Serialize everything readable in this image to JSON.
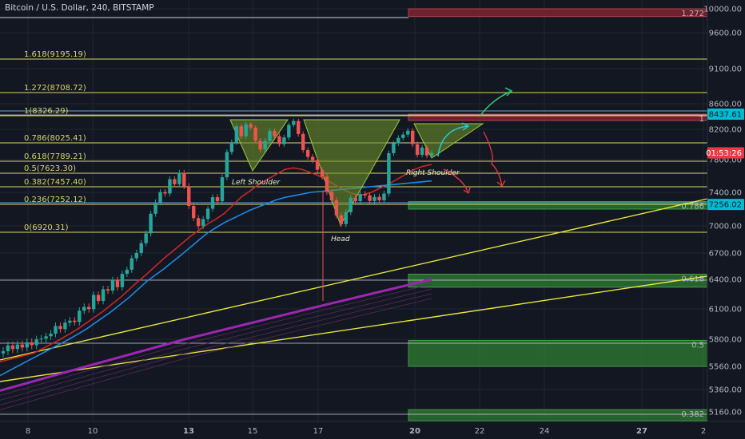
{
  "header": {
    "title": "Bitcoin / U.S. Dollar, 240, BITSTAMP"
  },
  "colors": {
    "background": "#131722",
    "grid": "#1f2430",
    "fib_line": "#d9d56a",
    "fib_text": "#d9d56a",
    "bull": "#26a69a",
    "bear": "#ef5350",
    "ma_red": "#c62828",
    "ma_blue": "#1e88e5",
    "ma_purple": "#9c27b0",
    "zone_green": "#2e7d32",
    "zone_red": "#8e2430",
    "pattern_fill": "#6b8f2a",
    "price_tag_cyan": "#00bcd4",
    "price_tag_red": "#f23645"
  },
  "chart_data": {
    "type": "candlestick",
    "y_axis": {
      "ticks": [
        10000,
        9600,
        9100,
        8600,
        8200,
        7800,
        7400,
        7000,
        6700,
        6400,
        6100,
        5800,
        5560,
        5360,
        5160
      ],
      "labels": [
        "10000.00",
        "9600.00",
        "9100.00",
        "8600.00",
        "8200.00",
        "7800.00",
        "7400.00",
        "7000.00",
        "6700.00",
        "6400.00",
        "6100.00",
        "5800.00",
        "5560.00",
        "5360.00",
        "5160.00"
      ]
    },
    "x_axis": {
      "labels": [
        "8",
        "10",
        "13",
        "15",
        "17",
        "20",
        "22",
        "24",
        "27",
        "2"
      ],
      "bold": [
        false,
        false,
        true,
        false,
        false,
        true,
        false,
        false,
        true,
        false
      ]
    },
    "fib_levels": [
      {
        "label": "1.618(9195.19)",
        "value": 9195
      },
      {
        "label": "1.272(8708.72)",
        "value": 8709
      },
      {
        "label": "1(8326.29)",
        "value": 8326
      },
      {
        "label": "0.786(8025.41)",
        "value": 8025
      },
      {
        "label": "0.618(7789.21)",
        "value": 7789
      },
      {
        "label": "0.5(7623.30)",
        "value": 7623
      },
      {
        "label": "0.382(7457.40)",
        "value": 7457
      },
      {
        "label": "0.236(7252.12)",
        "value": 7252
      },
      {
        "label": "0(6920.31)",
        "value": 6920
      }
    ],
    "candles_close": [
      5694,
      5745,
      5713,
      5753,
      5727,
      5773,
      5747,
      5799,
      5806,
      5829,
      5855,
      5931,
      5900,
      5964,
      5984,
      5971,
      6082,
      6120,
      6098,
      6242,
      6181,
      6300,
      6286,
      6394,
      6321,
      6463,
      6510,
      6640,
      6701,
      6809,
      6917,
      7145,
      7281,
      7404,
      7386,
      7561,
      7500,
      7640,
      7476,
      7238,
      7093,
      6997,
      7082,
      7205,
      7342,
      7294,
      7585,
      7901,
      8030,
      8247,
      8108,
      8280,
      8227,
      8049,
      7934,
      8047,
      8180,
      8110,
      8005,
      8093,
      8268,
      8330,
      8138,
      7926,
      7837,
      7792,
      7676,
      7594,
      7405,
      7305,
      7126,
      7021,
      7163,
      7335,
      7295,
      7380,
      7365,
      7297,
      7346,
      7305,
      7385,
      7885,
      8015,
      8086,
      8131,
      8182,
      8003,
      7863,
      7959,
      7855,
      7890
    ],
    "moving_averages": [
      {
        "name": "red",
        "values": [
          5600,
          5620,
          5640,
          5660,
          5680,
          5720,
          5760,
          5800,
          5850,
          5900,
          5960,
          6020,
          6080,
          6150,
          6220,
          6300,
          6380,
          6460,
          6550,
          6640,
          6720,
          6800,
          6880,
          6950,
          7020,
          7080,
          7150,
          7250,
          7350,
          7420,
          7500,
          7560,
          7620,
          7680,
          7700,
          7680,
          7640,
          7600,
          7540,
          7480,
          7420,
          7380,
          7370,
          7400,
          7450,
          7500,
          7560,
          7620,
          7680,
          7720,
          7740
        ]
      },
      {
        "name": "blue",
        "values": [
          5480,
          5520,
          5560,
          5600,
          5640,
          5680,
          5720,
          5760,
          5800,
          5850,
          5900,
          5960,
          6020,
          6080,
          6150,
          6220,
          6300,
          6380,
          6450,
          6520,
          6600,
          6680,
          6760,
          6840,
          6920,
          6980,
          7040,
          7090,
          7140,
          7190,
          7230,
          7270,
          7310,
          7340,
          7360,
          7380,
          7400,
          7410,
          7420,
          7430,
          7440,
          7450,
          7460,
          7470,
          7480,
          7490,
          7500,
          7510,
          7520,
          7530,
          7540
        ]
      },
      {
        "name": "purple",
        "values": [
          5350,
          5380,
          5410,
          5440,
          5470,
          5500,
          5530,
          5560,
          5590,
          5620,
          5650,
          5680,
          5710,
          5740,
          5770,
          5800,
          5830,
          5860,
          5890,
          5920,
          5950,
          5980,
          6010,
          6040,
          6070,
          6100,
          6130,
          6160,
          6190,
          6220,
          6250,
          6280,
          6310,
          6340,
          6370,
          6400
        ]
      }
    ],
    "trendlines": [
      {
        "from": [
          0,
          5650
        ],
        "to": [
          1,
          7256
        ]
      },
      {
        "from": [
          0,
          5480
        ],
        "to": [
          1,
          6460
        ]
      }
    ],
    "zones": [
      {
        "type": "supply",
        "label": "1.272",
        "top": 10000,
        "bottom": 9870
      },
      {
        "type": "supply",
        "label": "1",
        "top": 8437,
        "bottom": 8338
      },
      {
        "type": "demand",
        "label": "0.786",
        "top": 7290,
        "bottom": 7200
      },
      {
        "type": "demand",
        "label": "0.618",
        "top": 6460,
        "bottom": 6320
      },
      {
        "type": "demand",
        "label": "0.5",
        "top": 5790,
        "bottom": 5560
      },
      {
        "type": "demand",
        "label": "0.382",
        "top": 5180,
        "bottom": 5080
      }
    ],
    "annotations": [
      "Left Shoulder",
      "Head",
      "Right Shoulder"
    ],
    "price_tags": [
      {
        "label": "8437.61",
        "value": 8437,
        "color": "#00bcd4"
      },
      {
        "label": "01:53:26",
        "value": 7890,
        "color": "#f23645"
      },
      {
        "label": "7256.02",
        "value": 7256,
        "color": "#00bcd4"
      }
    ]
  }
}
